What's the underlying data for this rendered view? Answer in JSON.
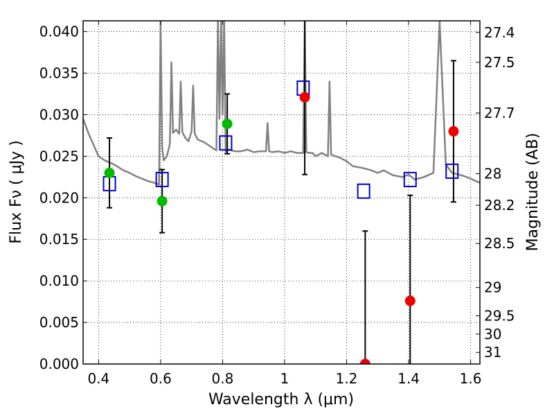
{
  "chart_data": {
    "type": "scatter",
    "xlabel": "Wavelength  λ (μm)",
    "ylabel_left": "Flux  Fν  ( μJy )",
    "ylabel_right": "Magnitude (AB)",
    "xlim": [
      0.35,
      1.63
    ],
    "ylim": [
      0.0,
      0.0413
    ],
    "grid": true,
    "x_ticks": [
      {
        "value": 0.4,
        "label": "0.4"
      },
      {
        "value": 0.6,
        "label": "0.6"
      },
      {
        "value": 0.8,
        "label": "0.8"
      },
      {
        "value": 1.0,
        "label": "1"
      },
      {
        "value": 1.2,
        "label": "1.2"
      },
      {
        "value": 1.4,
        "label": "1.4"
      },
      {
        "value": 1.6,
        "label": "1.6"
      }
    ],
    "y_ticks": [
      {
        "value": 0.0,
        "label": "0.000"
      },
      {
        "value": 0.005,
        "label": "0.005"
      },
      {
        "value": 0.01,
        "label": "0.010"
      },
      {
        "value": 0.015,
        "label": "0.015"
      },
      {
        "value": 0.02,
        "label": "0.020"
      },
      {
        "value": 0.025,
        "label": "0.025"
      },
      {
        "value": 0.03,
        "label": "0.030"
      },
      {
        "value": 0.035,
        "label": "0.035"
      },
      {
        "value": 0.04,
        "label": "0.040"
      }
    ],
    "right_ticks": [
      {
        "label": "27.4",
        "flux": 0.0399
      },
      {
        "label": "27.5",
        "flux": 0.0363
      },
      {
        "label": "27.7",
        "flux": 0.0302
      },
      {
        "label": "28",
        "flux": 0.0229
      },
      {
        "label": "28.2",
        "flux": 0.0191
      },
      {
        "label": "28.5",
        "flux": 0.0145
      },
      {
        "label": "29",
        "flux": 0.0092
      },
      {
        "label": "29.5",
        "flux": 0.0058
      },
      {
        "label": "30",
        "flux": 0.0036
      },
      {
        "label": "31",
        "flux": 0.0014
      }
    ],
    "series": [
      {
        "kind": "model-spectrum",
        "color": "#808080",
        "x": [
          0.35,
          0.37,
          0.4,
          0.42,
          0.45,
          0.48,
          0.5,
          0.52,
          0.54,
          0.56,
          0.58,
          0.595,
          0.6,
          0.605,
          0.61,
          0.62,
          0.63,
          0.635,
          0.64,
          0.65,
          0.66,
          0.665,
          0.67,
          0.68,
          0.69,
          0.7,
          0.705,
          0.71,
          0.72,
          0.74,
          0.76,
          0.78,
          0.785,
          0.79,
          0.795,
          0.8,
          0.805,
          0.81,
          0.82,
          0.84,
          0.86,
          0.88,
          0.9,
          0.92,
          0.94,
          0.945,
          0.95,
          0.96,
          0.98,
          1.0,
          1.02,
          1.04,
          1.06,
          1.065,
          1.07,
          1.08,
          1.09,
          1.1,
          1.12,
          1.14,
          1.145,
          1.15,
          1.18,
          1.2,
          1.22,
          1.25,
          1.28,
          1.3,
          1.32,
          1.35,
          1.38,
          1.4,
          1.42,
          1.45,
          1.48,
          1.5,
          1.52,
          1.54,
          1.56,
          1.58,
          1.6,
          1.63
        ],
        "y": [
          0.0295,
          0.0275,
          0.025,
          0.0245,
          0.024,
          0.0233,
          0.023,
          0.0226,
          0.0223,
          0.022,
          0.0218,
          0.0216,
          0.0413,
          0.026,
          0.0245,
          0.025,
          0.0265,
          0.0363,
          0.0278,
          0.0282,
          0.0277,
          0.034,
          0.0279,
          0.0272,
          0.0268,
          0.028,
          0.0335,
          0.0277,
          0.027,
          0.0267,
          0.0262,
          0.0257,
          0.0413,
          0.0295,
          0.0413,
          0.03,
          0.0413,
          0.0255,
          0.0258,
          0.0256,
          0.0256,
          0.0258,
          0.0255,
          0.0256,
          0.0256,
          0.029,
          0.0256,
          0.0255,
          0.0256,
          0.0254,
          0.0256,
          0.0254,
          0.0254,
          0.0413,
          0.0255,
          0.0254,
          0.0254,
          0.025,
          0.0254,
          0.025,
          0.034,
          0.0252,
          0.0248,
          0.0244,
          0.0238,
          0.0236,
          0.0233,
          0.023,
          0.0233,
          0.0227,
          0.0225,
          0.0228,
          0.0222,
          0.0225,
          0.023,
          0.0413,
          0.024,
          0.023,
          0.0228,
          0.0226,
          0.0223,
          0.0218
        ]
      },
      {
        "kind": "model-photometry",
        "marker": "open-square",
        "color": "#0000cc",
        "x": [
          0.435,
          0.605,
          0.81,
          1.06,
          1.255,
          1.405,
          1.54
        ],
        "y": [
          0.0217,
          0.0222,
          0.0266,
          0.0332,
          0.0208,
          0.0222,
          0.0232
        ]
      },
      {
        "kind": "observed-detection",
        "marker": "filled-circle",
        "color": "#00bb00",
        "x": [
          0.435,
          0.605,
          0.815
        ],
        "y": [
          0.023,
          0.0196,
          0.0289
        ],
        "err": [
          0.0042,
          0.0038,
          0.0036
        ]
      },
      {
        "kind": "observed-weak",
        "marker": "filled-circle",
        "color": "#ee0000",
        "x": [
          1.065,
          1.26,
          1.405,
          1.545
        ],
        "y": [
          0.0321,
          0.0,
          0.0076,
          0.028
        ],
        "err": [
          0.0093,
          0.016,
          0.0127,
          0.0085
        ]
      }
    ]
  }
}
